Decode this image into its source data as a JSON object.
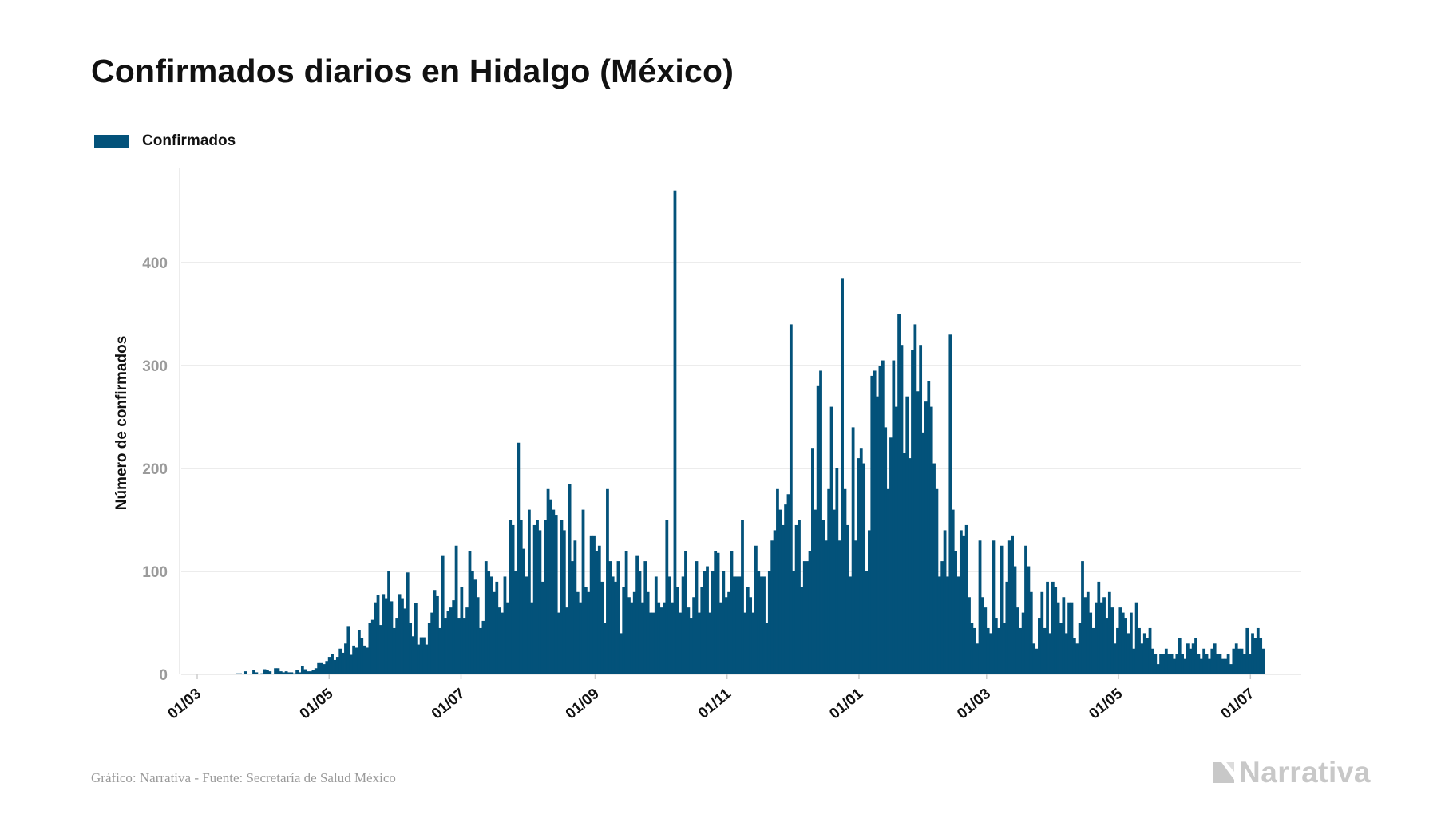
{
  "header": {
    "title": "Confirmados diarios en Hidalgo (México)"
  },
  "legend": {
    "label": "Confirmados",
    "color": "#03527a"
  },
  "footer": {
    "source": "Gráfico: Narrativa - Fuente: Secretaría de Salud México",
    "brand": "Narrativa"
  },
  "colors": {
    "bars": "#03527a",
    "grid": "#e6e6e6",
    "tick_text": "#9b9b9b"
  },
  "chart_data": {
    "type": "bar",
    "title": "Confirmados diarios en Hidalgo (México)",
    "xlabel": "",
    "ylabel": "Número de confirmados",
    "ylim": [
      0,
      490
    ],
    "yticks": [
      0,
      100,
      200,
      300,
      400
    ],
    "xticks": [
      "01/03",
      "01/05",
      "01/07",
      "01/09",
      "01/11",
      "01/01",
      "01/03",
      "01/05",
      "01/07"
    ],
    "grid": true,
    "legend_position": "top-left",
    "series": [
      {
        "name": "Confirmados",
        "x_start": "2020-03-01",
        "x_end": "2021-07-07",
        "values": [
          0,
          0,
          0,
          0,
          0,
          0,
          0,
          0,
          0,
          0,
          0,
          0,
          0,
          0,
          0,
          1,
          1,
          0,
          3,
          0,
          0,
          4,
          2,
          0,
          1,
          5,
          4,
          3,
          0,
          6,
          6,
          3,
          2,
          3,
          2,
          2,
          1,
          4,
          2,
          8,
          5,
          3,
          3,
          4,
          6,
          11,
          11,
          10,
          13,
          17,
          20,
          14,
          17,
          25,
          21,
          30,
          47,
          19,
          28,
          26,
          43,
          35,
          28,
          26,
          50,
          53,
          70,
          77,
          48,
          78,
          74,
          100,
          71,
          45,
          55,
          78,
          74,
          64,
          99,
          50,
          37,
          69,
          29,
          36,
          36,
          29,
          50,
          60,
          82,
          76,
          45,
          115,
          55,
          62,
          65,
          72,
          125,
          55,
          85,
          55,
          65,
          120,
          100,
          92,
          75,
          45,
          52,
          110,
          100,
          95,
          80,
          90,
          65,
          60,
          95,
          70,
          150,
          145,
          100,
          225,
          150,
          122,
          95,
          160,
          70,
          145,
          150,
          140,
          90,
          150,
          180,
          170,
          160,
          155,
          60,
          150,
          140,
          65,
          185,
          110,
          130,
          80,
          70,
          160,
          85,
          80,
          135,
          135,
          120,
          125,
          90,
          50,
          180,
          110,
          95,
          90,
          110,
          40,
          85,
          120,
          75,
          70,
          80,
          115,
          100,
          70,
          110,
          80,
          60,
          60,
          95,
          70,
          65,
          70,
          150,
          95,
          70,
          470,
          85,
          60,
          95,
          120,
          65,
          55,
          75,
          110,
          60,
          85,
          100,
          105,
          60,
          100,
          120,
          118,
          70,
          100,
          75,
          80,
          120,
          95,
          95,
          95,
          150,
          60,
          85,
          75,
          60,
          125,
          100,
          95,
          95,
          50,
          100,
          130,
          140,
          180,
          160,
          145,
          165,
          175,
          340,
          100,
          145,
          150,
          85,
          110,
          110,
          120,
          220,
          160,
          280,
          295,
          150,
          130,
          180,
          260,
          160,
          200,
          130,
          385,
          180,
          145,
          95,
          240,
          130,
          210,
          220,
          205,
          100,
          140,
          290,
          295,
          270,
          300,
          305,
          240,
          180,
          230,
          305,
          260,
          350,
          320,
          215,
          270,
          210,
          315,
          340,
          275,
          320,
          235,
          265,
          285,
          260,
          205,
          180,
          95,
          110,
          140,
          95,
          330,
          160,
          120,
          95,
          140,
          135,
          145,
          75,
          50,
          45,
          30,
          130,
          75,
          65,
          45,
          40,
          130,
          55,
          45,
          125,
          50,
          90,
          130,
          135,
          105,
          65,
          45,
          60,
          125,
          105,
          80,
          30,
          25,
          55,
          80,
          45,
          90,
          40,
          90,
          85,
          70,
          50,
          75,
          40,
          70,
          70,
          35,
          30,
          50,
          110,
          75,
          80,
          60,
          45,
          70,
          90,
          70,
          75,
          55,
          80,
          65,
          30,
          45,
          65,
          60,
          55,
          40,
          60,
          25,
          70,
          45,
          30,
          40,
          35,
          45,
          25,
          20,
          10,
          20,
          20,
          25,
          20,
          20,
          15,
          20,
          35,
          20,
          15,
          30,
          25,
          30,
          35,
          20,
          15,
          25,
          20,
          15,
          25,
          30,
          20,
          20,
          15,
          15,
          20,
          10,
          25,
          30,
          25,
          25,
          20,
          45,
          20,
          40,
          35,
          45,
          35,
          25
        ]
      }
    ]
  }
}
